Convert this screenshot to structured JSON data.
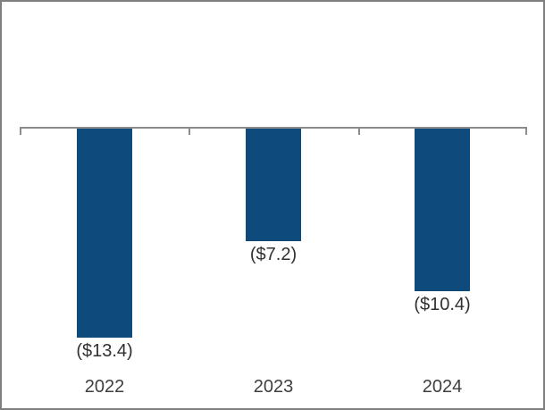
{
  "window": {
    "background_color": "#ffffff",
    "border_color": "#7f7f7f"
  },
  "chart_data": {
    "type": "bar",
    "title": "",
    "orientation": "vertical",
    "categories": [
      "2022",
      "2023",
      "2024"
    ],
    "values": [
      -13.4,
      -7.2,
      -10.4
    ],
    "data_labels": [
      "($13.4)",
      "($7.2)",
      "($10.4)"
    ],
    "bar_color": "#0f4a7c",
    "axis_color": "#8c8c8c",
    "data_label_color": "#303030",
    "category_label_color": "#3f3f3f",
    "baseline_value": 0,
    "gridlines": false,
    "legend": false,
    "y_axis_labels_visible": false,
    "data_label_position": "outside-end-below-bar",
    "category_label_position": "below-plot"
  }
}
